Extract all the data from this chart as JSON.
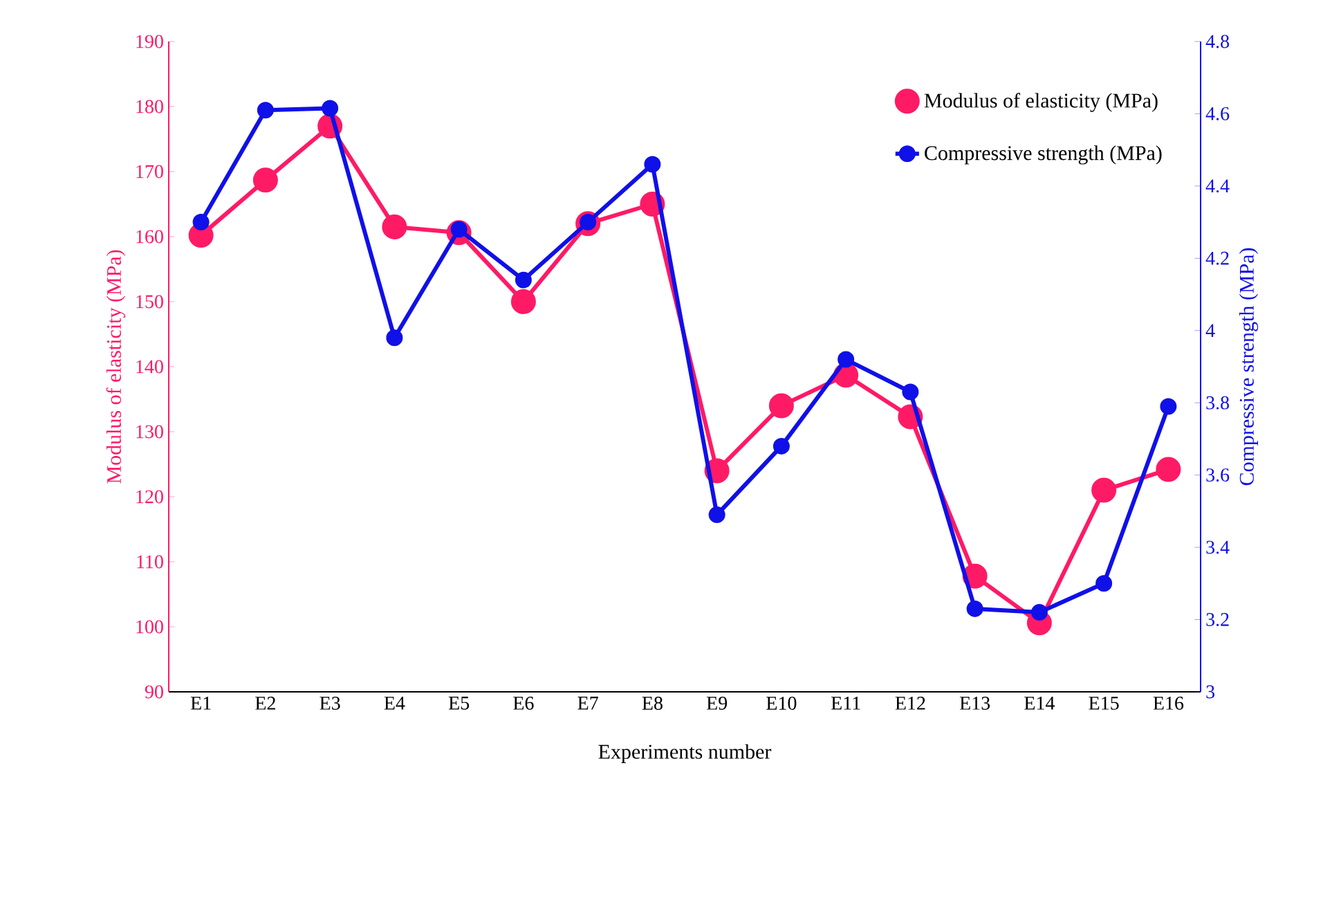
{
  "chart_data": {
    "type": "line",
    "categories": [
      "E1",
      "E2",
      "E3",
      "E4",
      "E5",
      "E6",
      "E7",
      "E8",
      "E9",
      "E10",
      "E11",
      "E12",
      "E13",
      "E14",
      "E15",
      "E16"
    ],
    "series": [
      {
        "name": "Modulus of elasticity (MPa)",
        "color": "#ff1a66",
        "values": [
          160.2,
          168.7,
          177,
          161.5,
          160.6,
          150,
          162,
          165,
          124,
          134,
          138.7,
          132.3,
          107.8,
          100.6,
          121,
          124.2
        ]
      },
      {
        "name": "Compressive strength (MPa)",
        "color": "#1010e8",
        "axis": "y2",
        "values": [
          4.3,
          4.61,
          4.615,
          3.98,
          4.28,
          4.14,
          4.3,
          4.46,
          3.49,
          3.68,
          3.92,
          3.83,
          3.23,
          3.22,
          3.3,
          3.79
        ]
      }
    ],
    "xlabel": "Experiments number",
    "ylabel": "Modulus of elasticity (MPa)",
    "y2label": "Compressive strength (MPa)",
    "ylim": [
      90,
      190
    ],
    "yticks": [
      90,
      100,
      110,
      120,
      130,
      140,
      150,
      160,
      170,
      180,
      190
    ],
    "y2lim": [
      3,
      4.8
    ],
    "y2ticks": [
      3,
      3.2,
      3.4,
      3.6,
      3.8,
      4,
      4.2,
      4.4,
      4.6,
      4.8
    ],
    "marker": "circle",
    "line_style": "solid",
    "legend": "top right",
    "grid": false
  }
}
